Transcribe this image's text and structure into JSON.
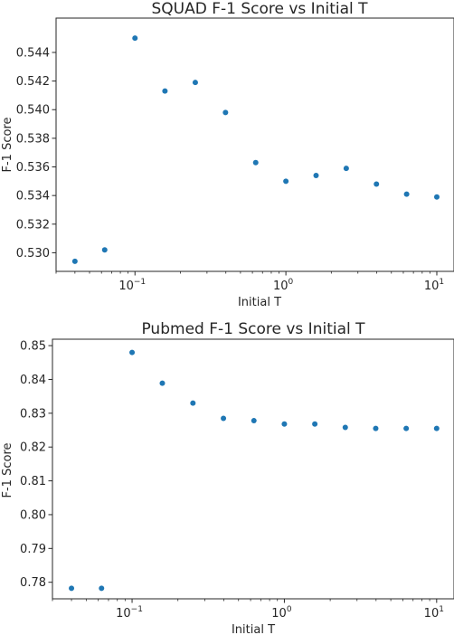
{
  "chart_data": [
    {
      "type": "scatter",
      "title": "SQUAD F-1 Score vs Initial T",
      "xlabel": "Initial T",
      "ylabel": "F-1 Score",
      "xscale": "log",
      "xlim": [
        0.03,
        13
      ],
      "ylim": [
        0.5287,
        0.5464
      ],
      "x_ticks": [
        {
          "base": "10",
          "exp": "−1",
          "value": 0.1
        },
        {
          "base": "10",
          "exp": "0",
          "value": 1
        },
        {
          "base": "10",
          "exp": "1",
          "value": 10
        }
      ],
      "y_ticks": [
        "0.530",
        "0.532",
        "0.534",
        "0.536",
        "0.538",
        "0.540",
        "0.542",
        "0.544"
      ],
      "grid": false,
      "marker_color": "#1f77b4",
      "series": [
        {
          "x": [
            0.04,
            0.063,
            0.1,
            0.158,
            0.251,
            0.398,
            0.631,
            1.0,
            1.585,
            2.512,
            3.981,
            6.31,
            10.0
          ],
          "y": [
            0.5294,
            0.5302,
            0.545,
            0.5413,
            0.5419,
            0.5398,
            0.5363,
            0.535,
            0.5354,
            0.5359,
            0.5348,
            0.5341,
            0.5339
          ]
        }
      ]
    },
    {
      "type": "scatter",
      "title": "Pubmed F-1 Score vs Initial T",
      "xlabel": "Initial T",
      "ylabel": "F-1 Score",
      "xscale": "log",
      "xlim": [
        0.03,
        13
      ],
      "ylim": [
        0.7751,
        0.8519
      ],
      "x_ticks": [
        {
          "base": "10",
          "exp": "−1",
          "value": 0.1
        },
        {
          "base": "10",
          "exp": "0",
          "value": 1
        },
        {
          "base": "10",
          "exp": "1",
          "value": 10
        }
      ],
      "y_ticks": [
        "0.78",
        "0.79",
        "0.80",
        "0.81",
        "0.82",
        "0.83",
        "0.84",
        "0.85"
      ],
      "grid": false,
      "marker_color": "#1f77b4",
      "series": [
        {
          "x": [
            0.04,
            0.063,
            0.1,
            0.158,
            0.251,
            0.398,
            0.631,
            1.0,
            1.585,
            2.512,
            3.981,
            6.31,
            10.0
          ],
          "y": [
            0.7782,
            0.7782,
            0.848,
            0.8389,
            0.833,
            0.8285,
            0.8278,
            0.8268,
            0.8268,
            0.8258,
            0.8255,
            0.8255,
            0.8255
          ]
        }
      ]
    }
  ]
}
